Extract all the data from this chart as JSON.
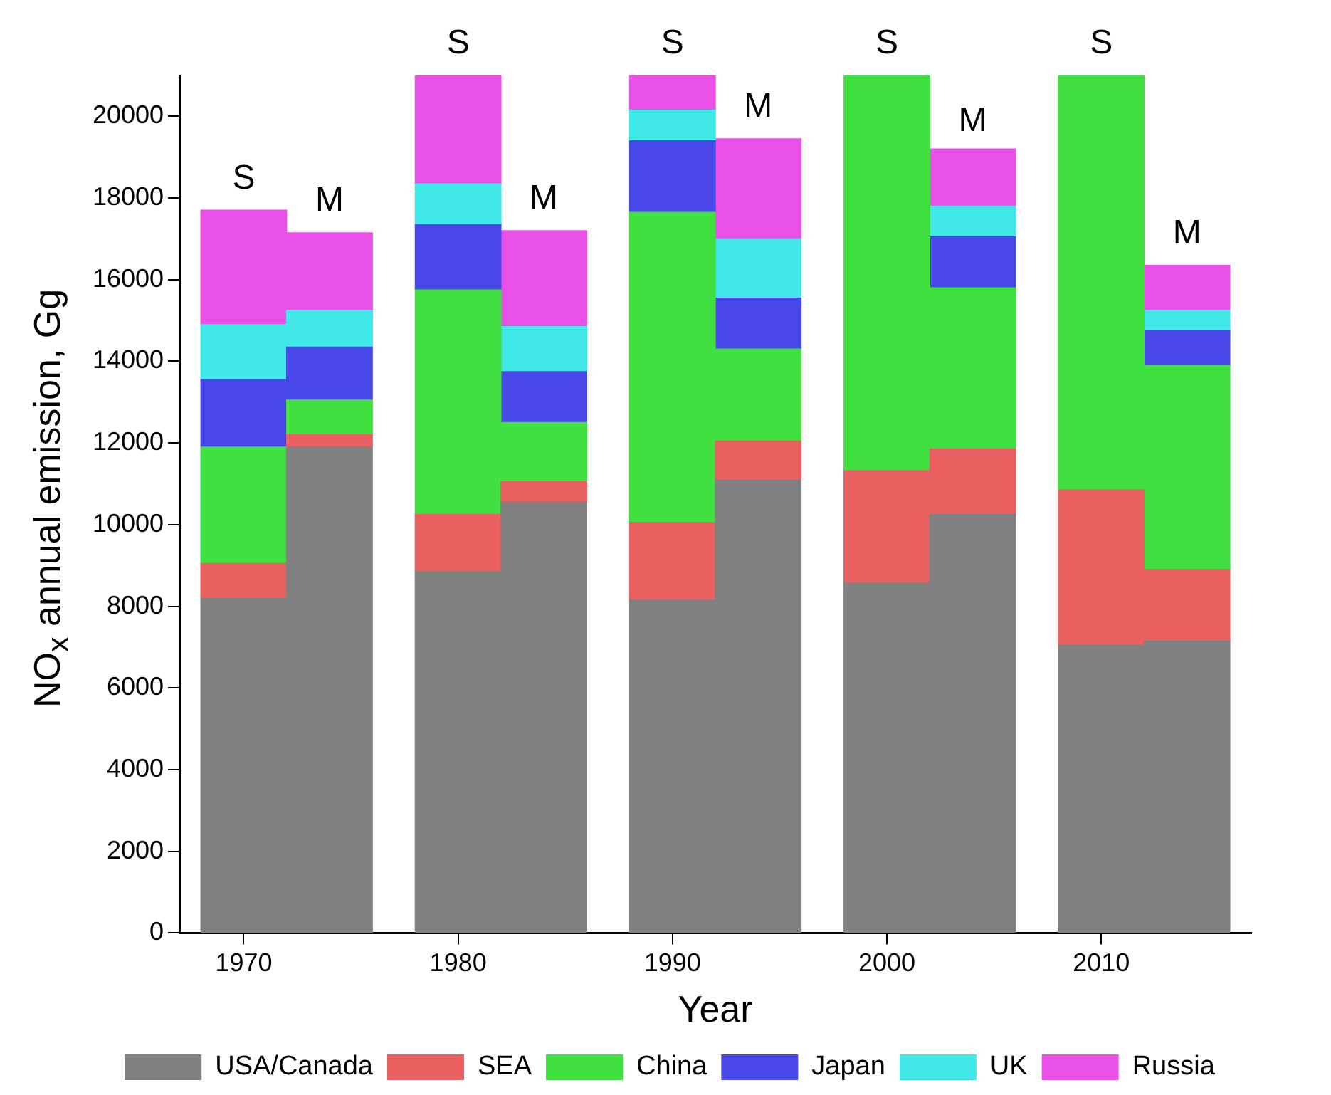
{
  "chart_data": {
    "type": "bar",
    "stacked": true,
    "xlabel": "Year",
    "ylabel": "NO$_{x}$ annual emission, Gg",
    "x": [
      1970,
      1974,
      1980,
      1984,
      1990,
      1994,
      2000,
      2004,
      2010,
      2014
    ],
    "xlim": [
      1967,
      2017
    ],
    "xticks": [
      1970,
      1980,
      1990,
      2000,
      2010
    ],
    "ylim": [
      0,
      21000
    ],
    "yticks": [
      0,
      2000,
      4000,
      6000,
      8000,
      10000,
      12000,
      14000,
      16000,
      18000,
      20000
    ],
    "grid": false,
    "legend": "bottom",
    "series": [
      {
        "name": "USA/Canada",
        "color": "#808080",
        "values": [
          8200,
          11900,
          8850,
          10550,
          8150,
          11100,
          8570,
          10250,
          7050,
          7150
        ]
      },
      {
        "name": "SEA",
        "color": "#e86060",
        "values": [
          850,
          300,
          1400,
          500,
          1900,
          950,
          2750,
          1600,
          3800,
          1750
        ]
      },
      {
        "name": "China",
        "color": "#40e040",
        "values": [
          2850,
          850,
          5500,
          1450,
          7600,
          2250,
          9680,
          3950,
          10150,
          5000
        ]
      },
      {
        "name": "Japan",
        "color": "#4848e8",
        "values": [
          1650,
          1300,
          1600,
          1250,
          1750,
          1250,
          null,
          1250,
          null,
          850
        ]
      },
      {
        "name": "UK",
        "color": "#40e8e8",
        "values": [
          1350,
          900,
          1000,
          1100,
          750,
          1450,
          null,
          750,
          null,
          500
        ]
      },
      {
        "name": "Russia",
        "color": "#e850e8",
        "values": [
          2800,
          1900,
          2650,
          2350,
          900,
          2450,
          null,
          1400,
          null,
          1100
        ]
      }
    ],
    "annotations": [
      {
        "text": "S",
        "x": 1970,
        "y": 17700
      },
      {
        "text": "M",
        "x": 1974,
        "y": 17150
      },
      {
        "text": "S",
        "x": 1980,
        "y": 21000
      },
      {
        "text": "M",
        "x": 1984,
        "y": 17200
      },
      {
        "text": "S",
        "x": 1990,
        "y": 21000
      },
      {
        "text": "M",
        "x": 1994,
        "y": 19450
      },
      {
        "text": "S",
        "x": 2000,
        "y": 21000
      },
      {
        "text": "M",
        "x": 2004,
        "y": 19100
      },
      {
        "text": "S",
        "x": 2010,
        "y": 21000
      },
      {
        "text": "M",
        "x": 2014,
        "y": 16350
      }
    ]
  }
}
